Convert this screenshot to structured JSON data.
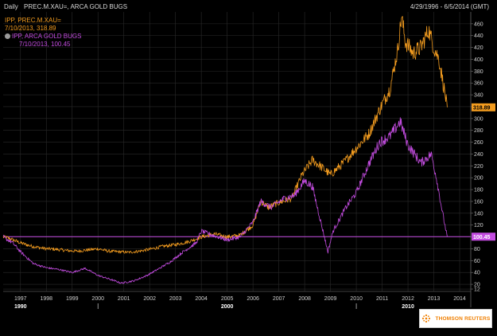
{
  "header": {
    "frequency": "Daily",
    "title": "PREC.M.XAU=, ARCA GOLD BUGS",
    "date_range": "4/29/1996 - 6/5/2014 (GMT)"
  },
  "legend": {
    "gold_title": "IPP, PREC.M.XAU=",
    "gold_value": "7/10/2013, 318.89",
    "bugs_title": "IPP, ARCA GOLD BUGS",
    "bugs_value": "7/10/2013, 100.45"
  },
  "watermark": {
    "text": "THOMSON REUTERS"
  },
  "colors": {
    "background": "#000000",
    "gold": "#f39c1f",
    "bugs": "#c34ce0",
    "grid": "#2a2a2a"
  },
  "chart_data": {
    "type": "line",
    "y_ticks": [
      12,
      20,
      40,
      60,
      80,
      100,
      120,
      140,
      160,
      180,
      200,
      220,
      240,
      260,
      280,
      300,
      320,
      340,
      360,
      380,
      400,
      420,
      440,
      460
    ],
    "y_tick_labels": [
      "12",
      "20",
      "40",
      "60",
      "80",
      "100",
      "120",
      "140",
      "160",
      "180",
      "200",
      "220",
      "240",
      "260",
      "280",
      "300",
      "320",
      "340",
      "360",
      "380",
      "400",
      "420",
      "440",
      "460"
    ],
    "ylim": [
      8,
      480
    ],
    "x_ticks": [
      1997,
      1998,
      1999,
      2000,
      2001,
      2002,
      2003,
      2004,
      2005,
      2006,
      2007,
      2008,
      2009,
      2010,
      2011,
      2012,
      2013,
      2014
    ],
    "x_tick_labels": [
      "1997",
      "1998",
      "1999",
      "2000",
      "2001",
      "2002",
      "2003",
      "2004",
      "2005",
      "2006",
      "2007",
      "2008",
      "2009",
      "2010",
      "2011",
      "2012",
      "2013",
      "2014"
    ],
    "xlim": [
      1996.33,
      2014.43
    ],
    "decades": [
      {
        "x": 1997.0,
        "label": "1990"
      },
      {
        "x": 2005.0,
        "label": "2000"
      },
      {
        "x": 2012.0,
        "label": "2010"
      }
    ],
    "decade_markers": [
      2000.0,
      2010.0
    ],
    "grid": true,
    "last_values": [
      {
        "series": "PREC.M.XAU=",
        "label": "318.89",
        "value": 318.89
      },
      {
        "series": "ARCA GOLD BUGS",
        "label": "100.45",
        "value": 100.45
      }
    ],
    "reference_line": 100.45,
    "series": [
      {
        "name": "PREC.M.XAU=",
        "color": "#f39c1f",
        "points": [
          [
            1996.33,
            100
          ],
          [
            1996.6,
            97
          ],
          [
            1997.0,
            90
          ],
          [
            1997.3,
            86
          ],
          [
            1997.6,
            83
          ],
          [
            1998.0,
            80
          ],
          [
            1998.4,
            79
          ],
          [
            1998.8,
            77
          ],
          [
            1999.2,
            76
          ],
          [
            1999.6,
            78
          ],
          [
            2000.0,
            80
          ],
          [
            2000.4,
            76
          ],
          [
            2000.8,
            75
          ],
          [
            2001.2,
            74
          ],
          [
            2001.6,
            76
          ],
          [
            2002.0,
            79
          ],
          [
            2002.5,
            84
          ],
          [
            2003.0,
            87
          ],
          [
            2003.5,
            92
          ],
          [
            2004.0,
            100
          ],
          [
            2004.5,
            105
          ],
          [
            2005.0,
            100
          ],
          [
            2005.5,
            103
          ],
          [
            2006.0,
            120
          ],
          [
            2006.3,
            160
          ],
          [
            2006.6,
            150
          ],
          [
            2007.0,
            158
          ],
          [
            2007.5,
            165
          ],
          [
            2007.9,
            205
          ],
          [
            2008.3,
            230
          ],
          [
            2008.6,
            220
          ],
          [
            2009.0,
            205
          ],
          [
            2009.5,
            225
          ],
          [
            2010.0,
            250
          ],
          [
            2010.5,
            275
          ],
          [
            2010.9,
            315
          ],
          [
            2011.3,
            350
          ],
          [
            2011.6,
            415
          ],
          [
            2011.75,
            472
          ],
          [
            2011.9,
            430
          ],
          [
            2012.2,
            410
          ],
          [
            2012.5,
            420
          ],
          [
            2012.8,
            450
          ],
          [
            2013.0,
            420
          ],
          [
            2013.2,
            400
          ],
          [
            2013.4,
            350
          ],
          [
            2013.52,
            318.89
          ]
        ]
      },
      {
        "name": "ARCA GOLD BUGS",
        "color": "#c34ce0",
        "points": [
          [
            1996.33,
            100
          ],
          [
            1996.7,
            90
          ],
          [
            1997.0,
            75
          ],
          [
            1997.5,
            55
          ],
          [
            1998.0,
            48
          ],
          [
            1998.5,
            45
          ],
          [
            1999.0,
            40
          ],
          [
            1999.5,
            47
          ],
          [
            2000.0,
            35
          ],
          [
            2000.5,
            28
          ],
          [
            2000.9,
            22
          ],
          [
            2001.4,
            26
          ],
          [
            2001.9,
            35
          ],
          [
            2002.3,
            45
          ],
          [
            2002.8,
            58
          ],
          [
            2003.3,
            75
          ],
          [
            2003.8,
            90
          ],
          [
            2004.0,
            110
          ],
          [
            2004.5,
            102
          ],
          [
            2005.0,
            95
          ],
          [
            2005.5,
            100
          ],
          [
            2006.0,
            125
          ],
          [
            2006.3,
            160
          ],
          [
            2006.7,
            150
          ],
          [
            2007.2,
            165
          ],
          [
            2007.6,
            170
          ],
          [
            2008.0,
            195
          ],
          [
            2008.3,
            185
          ],
          [
            2008.6,
            130
          ],
          [
            2008.9,
            75
          ],
          [
            2009.1,
            110
          ],
          [
            2009.6,
            150
          ],
          [
            2010.0,
            175
          ],
          [
            2010.5,
            225
          ],
          [
            2010.9,
            260
          ],
          [
            2011.3,
            270
          ],
          [
            2011.7,
            295
          ],
          [
            2012.0,
            255
          ],
          [
            2012.5,
            225
          ],
          [
            2012.9,
            240
          ],
          [
            2013.1,
            200
          ],
          [
            2013.3,
            150
          ],
          [
            2013.45,
            115
          ],
          [
            2013.52,
            100.45
          ]
        ]
      }
    ]
  }
}
